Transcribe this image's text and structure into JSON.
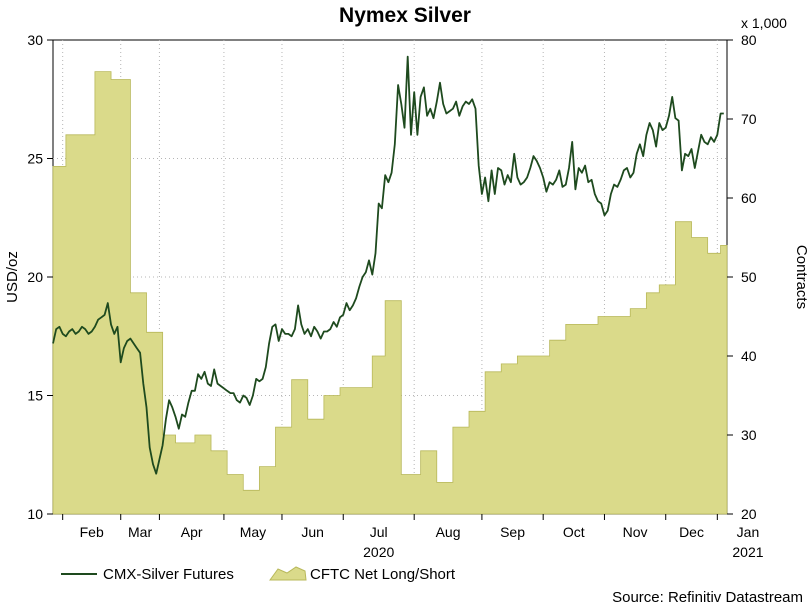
{
  "chart_data": {
    "type": "line+area",
    "title": "Nymex Silver",
    "left_axis": {
      "label": "USD/oz",
      "range": [
        10,
        30
      ],
      "ticks": [
        10,
        15,
        20,
        25,
        30
      ]
    },
    "right_axis": {
      "label": "Contracts",
      "multiplier": "x 1,000",
      "range": [
        20,
        80
      ],
      "ticks": [
        20,
        30,
        40,
        50,
        60,
        70,
        80
      ]
    },
    "x_axis": {
      "months": [
        "Feb",
        "Mar",
        "Apr",
        "May",
        "Jun",
        "Jul",
        "Aug",
        "Sep",
        "Oct",
        "Nov",
        "Dec",
        "Jan"
      ],
      "year_labels": [
        {
          "text": "2020",
          "under": "Jul"
        },
        {
          "text": "2021",
          "under": "Jan"
        }
      ],
      "start": "2020-01-13",
      "end": "2021-01-25"
    },
    "grid": true,
    "series": [
      {
        "name": "CMX-Silver Futures",
        "axis": "left",
        "style": "line",
        "color": "#1e4a1e",
        "points": [
          [
            0,
            17.2
          ],
          [
            1,
            17.8
          ],
          [
            2,
            17.9
          ],
          [
            3,
            17.6
          ],
          [
            4,
            17.5
          ],
          [
            5,
            17.7
          ],
          [
            6,
            17.8
          ],
          [
            7,
            17.6
          ],
          [
            8,
            17.7
          ],
          [
            9,
            17.9
          ],
          [
            10,
            17.8
          ],
          [
            11,
            17.6
          ],
          [
            12,
            17.7
          ],
          [
            13,
            17.9
          ],
          [
            14,
            18.2
          ],
          [
            15,
            18.3
          ],
          [
            16,
            18.4
          ],
          [
            17,
            18.9
          ],
          [
            18,
            18.0
          ],
          [
            19,
            17.6
          ],
          [
            20,
            17.9
          ],
          [
            21,
            16.4
          ],
          [
            22,
            17.0
          ],
          [
            23,
            17.3
          ],
          [
            24,
            17.4
          ],
          [
            25,
            17.2
          ],
          [
            26,
            17.0
          ],
          [
            27,
            16.8
          ],
          [
            28,
            15.5
          ],
          [
            29,
            14.5
          ],
          [
            30,
            12.8
          ],
          [
            31,
            12.1
          ],
          [
            32,
            11.7
          ],
          [
            33,
            12.3
          ],
          [
            34,
            12.9
          ],
          [
            35,
            14.0
          ],
          [
            36,
            14.8
          ],
          [
            37,
            14.5
          ],
          [
            38,
            14.1
          ],
          [
            39,
            13.6
          ],
          [
            40,
            14.2
          ],
          [
            41,
            14.1
          ],
          [
            42,
            14.7
          ],
          [
            43,
            15.2
          ],
          [
            44,
            15.2
          ],
          [
            45,
            15.9
          ],
          [
            46,
            15.7
          ],
          [
            47,
            16.0
          ],
          [
            48,
            15.5
          ],
          [
            49,
            15.4
          ],
          [
            50,
            16.1
          ],
          [
            51,
            15.5
          ],
          [
            52,
            15.4
          ],
          [
            53,
            15.3
          ],
          [
            54,
            15.2
          ],
          [
            55,
            15.1
          ],
          [
            56,
            15.1
          ],
          [
            57,
            14.8
          ],
          [
            58,
            14.7
          ],
          [
            59,
            15.0
          ],
          [
            60,
            14.9
          ],
          [
            61,
            14.6
          ],
          [
            62,
            15.0
          ],
          [
            63,
            15.7
          ],
          [
            64,
            15.6
          ],
          [
            65,
            15.7
          ],
          [
            66,
            16.2
          ],
          [
            67,
            17.2
          ],
          [
            68,
            17.9
          ],
          [
            69,
            18.0
          ],
          [
            70,
            17.3
          ],
          [
            71,
            17.8
          ],
          [
            72,
            17.6
          ],
          [
            73,
            17.6
          ],
          [
            74,
            17.5
          ],
          [
            75,
            17.8
          ],
          [
            76,
            18.8
          ],
          [
            77,
            18.0
          ],
          [
            78,
            17.6
          ],
          [
            79,
            17.8
          ],
          [
            80,
            17.5
          ],
          [
            81,
            17.9
          ],
          [
            82,
            17.7
          ],
          [
            83,
            17.4
          ],
          [
            84,
            17.7
          ],
          [
            85,
            17.7
          ],
          [
            86,
            17.8
          ],
          [
            87,
            18.1
          ],
          [
            88,
            17.9
          ],
          [
            89,
            18.3
          ],
          [
            90,
            18.4
          ],
          [
            91,
            18.9
          ],
          [
            92,
            18.6
          ],
          [
            93,
            18.8
          ],
          [
            94,
            19.1
          ],
          [
            95,
            19.6
          ],
          [
            96,
            20.0
          ],
          [
            97,
            20.2
          ],
          [
            98,
            20.7
          ],
          [
            99,
            20.1
          ],
          [
            100,
            21.0
          ],
          [
            101,
            23.1
          ],
          [
            102,
            22.9
          ],
          [
            103,
            24.3
          ],
          [
            104,
            24.0
          ],
          [
            105,
            24.4
          ],
          [
            106,
            25.6
          ],
          [
            107,
            28.1
          ],
          [
            108,
            27.3
          ],
          [
            109,
            26.3
          ],
          [
            110,
            29.3
          ],
          [
            111,
            26.0
          ],
          [
            112,
            27.8
          ],
          [
            113,
            26.0
          ],
          [
            114,
            27.6
          ],
          [
            115,
            28.0
          ],
          [
            116,
            26.8
          ],
          [
            117,
            27.1
          ],
          [
            118,
            26.7
          ],
          [
            119,
            27.4
          ],
          [
            120,
            28.2
          ],
          [
            121,
            27.3
          ],
          [
            122,
            26.9
          ],
          [
            123,
            27.0
          ],
          [
            124,
            27.1
          ],
          [
            125,
            27.4
          ],
          [
            126,
            26.8
          ],
          [
            127,
            27.2
          ],
          [
            128,
            27.4
          ],
          [
            129,
            27.3
          ],
          [
            130,
            27.5
          ],
          [
            131,
            27.1
          ],
          [
            132,
            24.7
          ],
          [
            133,
            23.5
          ],
          [
            134,
            24.2
          ],
          [
            135,
            23.2
          ],
          [
            136,
            24.5
          ],
          [
            137,
            23.5
          ],
          [
            138,
            24.6
          ],
          [
            139,
            24.5
          ],
          [
            140,
            23.9
          ],
          [
            141,
            24.3
          ],
          [
            142,
            24.0
          ],
          [
            143,
            25.2
          ],
          [
            144,
            24.2
          ],
          [
            145,
            23.9
          ],
          [
            146,
            24.0
          ],
          [
            147,
            24.2
          ],
          [
            148,
            24.6
          ],
          [
            149,
            25.1
          ],
          [
            150,
            24.9
          ],
          [
            151,
            24.6
          ],
          [
            152,
            24.2
          ],
          [
            153,
            23.6
          ],
          [
            154,
            24.0
          ],
          [
            155,
            23.9
          ],
          [
            156,
            24.1
          ],
          [
            157,
            24.5
          ],
          [
            158,
            23.8
          ],
          [
            159,
            23.9
          ],
          [
            160,
            24.6
          ],
          [
            161,
            25.7
          ],
          [
            162,
            23.7
          ],
          [
            163,
            24.6
          ],
          [
            164,
            24.4
          ],
          [
            165,
            24.7
          ],
          [
            166,
            24.0
          ],
          [
            167,
            24.1
          ],
          [
            168,
            23.5
          ],
          [
            169,
            23.2
          ],
          [
            170,
            23.1
          ],
          [
            171,
            22.6
          ],
          [
            172,
            22.8
          ],
          [
            173,
            23.5
          ],
          [
            174,
            23.9
          ],
          [
            175,
            23.8
          ],
          [
            176,
            24.1
          ],
          [
            177,
            24.5
          ],
          [
            178,
            24.6
          ],
          [
            179,
            24.2
          ],
          [
            180,
            24.4
          ],
          [
            181,
            25.2
          ],
          [
            182,
            25.6
          ],
          [
            183,
            25.1
          ],
          [
            184,
            26.0
          ],
          [
            185,
            26.5
          ],
          [
            186,
            26.2
          ],
          [
            187,
            25.5
          ],
          [
            188,
            26.5
          ],
          [
            189,
            26.2
          ],
          [
            190,
            26.3
          ],
          [
            191,
            26.8
          ],
          [
            192,
            27.6
          ],
          [
            193,
            26.7
          ],
          [
            194,
            26.6
          ],
          [
            195,
            24.5
          ],
          [
            196,
            25.2
          ],
          [
            197,
            25.1
          ],
          [
            198,
            25.4
          ],
          [
            199,
            24.6
          ],
          [
            200,
            25.3
          ],
          [
            201,
            26.0
          ],
          [
            202,
            25.7
          ],
          [
            203,
            25.6
          ],
          [
            204,
            25.9
          ],
          [
            205,
            25.7
          ],
          [
            206,
            26.0
          ],
          [
            207,
            26.9
          ],
          [
            208,
            26.9
          ]
        ]
      },
      {
        "name": "CFTC Net Long/Short",
        "axis": "right",
        "style": "step-area",
        "color": "#dada8a",
        "edge_color": "#b8b85a",
        "steps": [
          [
            0,
            64
          ],
          [
            4,
            68
          ],
          [
            13,
            76
          ],
          [
            18,
            75
          ],
          [
            24,
            48
          ],
          [
            29,
            43
          ],
          [
            34,
            30
          ],
          [
            38,
            29
          ],
          [
            44,
            30
          ],
          [
            49,
            28
          ],
          [
            54,
            25
          ],
          [
            59,
            23
          ],
          [
            64,
            26
          ],
          [
            69,
            31
          ],
          [
            74,
            37
          ],
          [
            79,
            32
          ],
          [
            84,
            35
          ],
          [
            89,
            36
          ],
          [
            94,
            36
          ],
          [
            99,
            40
          ],
          [
            103,
            47
          ],
          [
            108,
            25
          ],
          [
            114,
            28
          ],
          [
            119,
            24
          ],
          [
            124,
            31
          ],
          [
            129,
            33
          ],
          [
            134,
            38
          ],
          [
            139,
            39
          ],
          [
            144,
            40
          ],
          [
            149,
            40
          ],
          [
            154,
            42
          ],
          [
            159,
            44
          ],
          [
            164,
            44
          ],
          [
            169,
            45
          ],
          [
            174,
            45
          ],
          [
            179,
            46
          ],
          [
            184,
            48
          ],
          [
            188,
            49
          ],
          [
            193,
            57
          ],
          [
            198,
            55
          ],
          [
            203,
            53
          ],
          [
            207,
            54
          ],
          [
            209,
            54
          ]
        ]
      }
    ],
    "legend": [
      {
        "label": "CMX-Silver Futures",
        "kind": "line"
      },
      {
        "label": "CFTC Net Long/Short",
        "kind": "area"
      }
    ],
    "legend_placement": "bottom-left",
    "source": "Source: Refinitiv Datastream"
  }
}
